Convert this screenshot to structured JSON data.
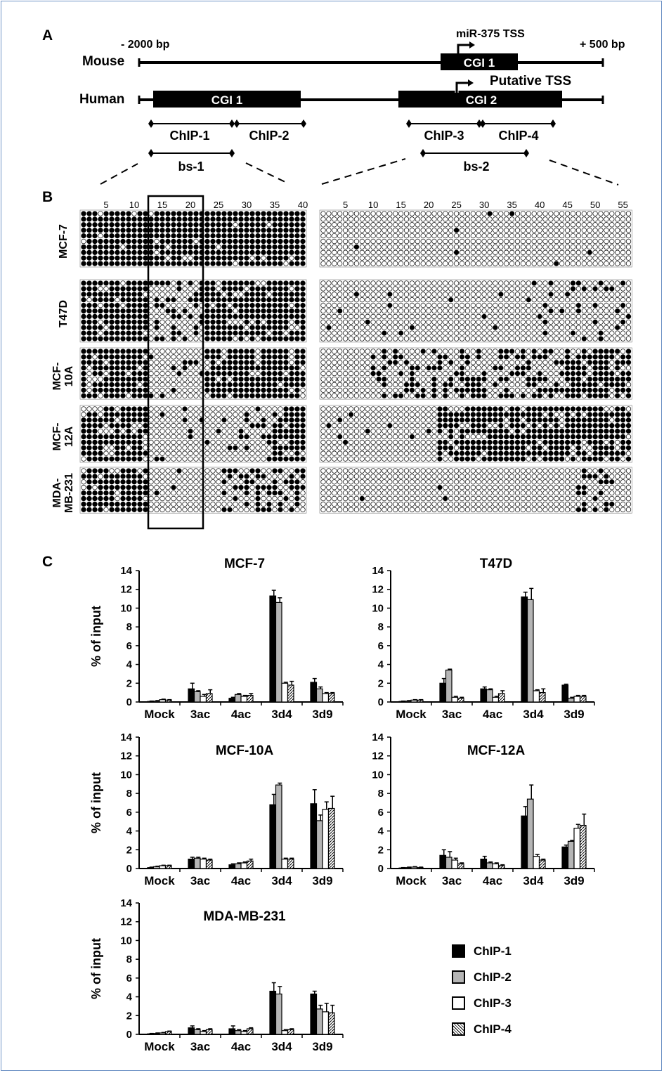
{
  "panels": {
    "a": "A",
    "b": "B",
    "c": "C"
  },
  "map": {
    "left_label": "- 2000 bp",
    "right_label": "+ 500 bp",
    "mouse_label": "Mouse",
    "human_label": "Human",
    "mouse_tss": "miR-375 TSS",
    "human_tss": "Putative TSS",
    "mouse_cgi": "CGI 1",
    "human_cgi1": "CGI 1",
    "human_cgi2": "CGI 2",
    "chip": [
      "ChIP-1",
      "ChIP-2",
      "ChIP-3",
      "ChIP-4"
    ],
    "bs": [
      "bs-1",
      "bs-2"
    ]
  },
  "methylation": {
    "left_ticks": [
      "5",
      "10",
      "15",
      "20",
      "25",
      "30",
      "35",
      "40"
    ],
    "right_ticks": [
      "5",
      "10",
      "15",
      "20",
      "25",
      "30",
      "35",
      "40",
      "45",
      "50",
      "55"
    ],
    "cell_lines": [
      "MCF-7",
      "T47D",
      "MCF-\n10A",
      "MCF-\n12A",
      "MDA-\nMB-231"
    ]
  },
  "colors": {
    "chip1": "#000000",
    "chip2": "#b5b5b5",
    "chip3": "#ffffff",
    "chip4": "hatched",
    "frame": "#6f93c6"
  },
  "legend": [
    "ChIP-1",
    "ChIP-2",
    "ChIP-3",
    "ChIP-4"
  ],
  "chart_data": [
    {
      "type": "bar",
      "title": "MCF-7",
      "ylabel": "% of input",
      "ylim": [
        0,
        14
      ],
      "yticks": [
        "0",
        "2",
        "4",
        "6",
        "8",
        "10",
        "12",
        "14"
      ],
      "categories": [
        "Mock",
        "3ac",
        "4ac",
        "3d4",
        "3d9"
      ],
      "series": [
        {
          "name": "ChIP-1",
          "values": [
            0.05,
            1.4,
            0.4,
            11.3,
            2.1
          ],
          "errors": [
            0.05,
            0.6,
            0.1,
            0.6,
            0.4
          ]
        },
        {
          "name": "ChIP-2",
          "values": [
            0.1,
            1.1,
            0.8,
            10.6,
            1.4
          ],
          "errors": [
            0.05,
            0.1,
            0.1,
            0.5,
            0.2
          ]
        },
        {
          "name": "ChIP-3",
          "values": [
            0.25,
            0.6,
            0.6,
            2.0,
            0.9
          ],
          "errors": [
            0.05,
            0.2,
            0.1,
            0.1,
            0.1
          ]
        },
        {
          "name": "ChIP-4",
          "values": [
            0.2,
            0.9,
            0.7,
            1.8,
            0.9
          ],
          "errors": [
            0.05,
            0.4,
            0.2,
            0.4,
            0.1
          ]
        }
      ]
    },
    {
      "type": "bar",
      "title": "T47D",
      "ylabel": "",
      "ylim": [
        0,
        14
      ],
      "yticks": [
        "0",
        "2",
        "4",
        "6",
        "8",
        "10",
        "12",
        "14"
      ],
      "categories": [
        "Mock",
        "3ac",
        "4ac",
        "3d4",
        "3d9"
      ],
      "series": [
        {
          "name": "ChIP-1",
          "values": [
            0.05,
            2.0,
            1.4,
            11.2,
            1.8
          ],
          "errors": [
            0.05,
            0.5,
            0.2,
            0.5,
            0.1
          ]
        },
        {
          "name": "ChIP-2",
          "values": [
            0.1,
            3.4,
            1.3,
            10.9,
            0.4
          ],
          "errors": [
            0.05,
            0.1,
            0.1,
            1.2,
            0.1
          ]
        },
        {
          "name": "ChIP-3",
          "values": [
            0.2,
            0.5,
            0.5,
            1.2,
            0.6
          ],
          "errors": [
            0.05,
            0.1,
            0.1,
            0.1,
            0.1
          ]
        },
        {
          "name": "ChIP-4",
          "values": [
            0.2,
            0.4,
            0.9,
            1.0,
            0.6
          ],
          "errors": [
            0.05,
            0.1,
            0.3,
            0.4,
            0.1
          ]
        }
      ]
    },
    {
      "type": "bar",
      "title": "MCF-10A",
      "ylabel": "% of input",
      "ylim": [
        0,
        14
      ],
      "yticks": [
        "0",
        "2",
        "4",
        "6",
        "8",
        "10",
        "12",
        "14"
      ],
      "categories": [
        "Mock",
        "3ac",
        "4ac",
        "3d4",
        "3d9"
      ],
      "series": [
        {
          "name": "ChIP-1",
          "values": [
            0.1,
            1.0,
            0.4,
            6.8,
            6.9
          ],
          "errors": [
            0.05,
            0.2,
            0.1,
            1.1,
            1.5
          ]
        },
        {
          "name": "ChIP-2",
          "values": [
            0.2,
            1.1,
            0.5,
            8.9,
            5.1
          ],
          "errors": [
            0.05,
            0.1,
            0.1,
            0.2,
            0.6
          ]
        },
        {
          "name": "ChIP-3",
          "values": [
            0.3,
            1.0,
            0.6,
            1.0,
            6.3
          ],
          "errors": [
            0.05,
            0.1,
            0.1,
            0.1,
            0.8
          ]
        },
        {
          "name": "ChIP-4",
          "values": [
            0.3,
            0.9,
            0.8,
            1.0,
            6.4
          ],
          "errors": [
            0.05,
            0.1,
            0.2,
            0.1,
            1.3
          ]
        }
      ]
    },
    {
      "type": "bar",
      "title": "MCF-12A",
      "ylabel": "",
      "ylim": [
        0,
        14
      ],
      "yticks": [
        "0",
        "2",
        "4",
        "6",
        "8",
        "10",
        "12",
        "14"
      ],
      "categories": [
        "Mock",
        "3ac",
        "4ac",
        "3d4",
        "3d9"
      ],
      "series": [
        {
          "name": "ChIP-1",
          "values": [
            0.05,
            1.4,
            1.0,
            5.6,
            2.3
          ],
          "errors": [
            0.05,
            0.6,
            0.3,
            1.0,
            0.2
          ]
        },
        {
          "name": "ChIP-2",
          "values": [
            0.1,
            1.2,
            0.6,
            7.4,
            2.9
          ],
          "errors": [
            0.05,
            0.6,
            0.1,
            1.5,
            0.1
          ]
        },
        {
          "name": "ChIP-3",
          "values": [
            0.15,
            0.9,
            0.5,
            1.3,
            4.3
          ],
          "errors": [
            0.05,
            0.2,
            0.1,
            0.2,
            0.4
          ]
        },
        {
          "name": "ChIP-4",
          "values": [
            0.1,
            0.5,
            0.3,
            0.9,
            4.6
          ],
          "errors": [
            0.05,
            0.1,
            0.1,
            0.1,
            1.2
          ]
        }
      ]
    },
    {
      "type": "bar",
      "title": "MDA-MB-231",
      "ylabel": "% of input",
      "ylim": [
        0,
        14
      ],
      "yticks": [
        "0",
        "2",
        "4",
        "6",
        "8",
        "10",
        "12",
        "14"
      ],
      "categories": [
        "Mock",
        "3ac",
        "4ac",
        "3d4",
        "3d9"
      ],
      "series": [
        {
          "name": "ChIP-1",
          "values": [
            0.05,
            0.7,
            0.6,
            4.6,
            4.3
          ],
          "errors": [
            0.05,
            0.2,
            0.3,
            0.9,
            0.3
          ]
        },
        {
          "name": "ChIP-2",
          "values": [
            0.1,
            0.5,
            0.4,
            4.3,
            2.7
          ],
          "errors": [
            0.05,
            0.1,
            0.1,
            0.8,
            0.4
          ]
        },
        {
          "name": "ChIP-3",
          "values": [
            0.15,
            0.3,
            0.3,
            0.4,
            2.4
          ],
          "errors": [
            0.05,
            0.1,
            0.1,
            0.1,
            0.9
          ]
        },
        {
          "name": "ChIP-4",
          "values": [
            0.3,
            0.5,
            0.6,
            0.5,
            2.3
          ],
          "errors": [
            0.05,
            0.1,
            0.1,
            0.1,
            0.8
          ]
        }
      ]
    }
  ]
}
